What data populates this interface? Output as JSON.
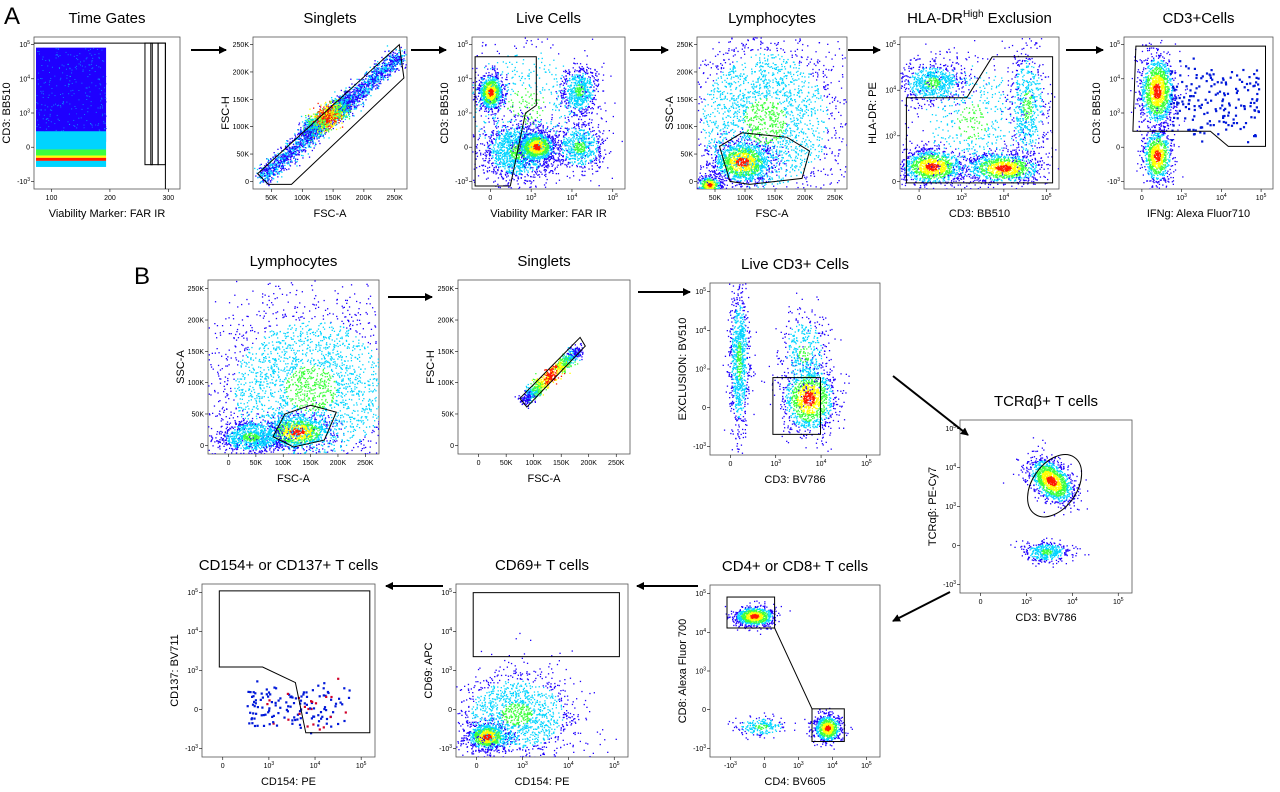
{
  "figure": {
    "panel_labels": [
      "A",
      "B"
    ]
  },
  "colors": {
    "density_low": "#1f00ff",
    "density_mid": "#00d4ff",
    "density_midhigh": "#3cff3c",
    "density_high": "#ffff00",
    "density_peak": "#ff1a00",
    "gate": "#000000",
    "arrow": "#000000",
    "dot": "#0018d9",
    "dot_positive": "#d0002a"
  },
  "chart_data": [
    {
      "id": "A1",
      "type": "scatter",
      "panel": "A",
      "title": "Time Gates",
      "title_sup": "",
      "title_tail": "",
      "xlabel": "Viability Marker: FAR IR",
      "ylabel": "CD3: BB510",
      "xticks": [
        "100",
        "200",
        "300"
      ],
      "yticks": [
        "10^5",
        "10^4",
        "10^3",
        "0",
        "-10^3"
      ],
      "gates": [
        "Time Gates"
      ]
    },
    {
      "id": "A2",
      "type": "scatter",
      "panel": "A",
      "title": "Singlets",
      "title_sup": "",
      "title_tail": "",
      "xlabel": "FSC-A",
      "ylabel": "FSC-H",
      "xticks": [
        "50K",
        "100K",
        "150K",
        "200K",
        "250K"
      ],
      "yticks": [
        "250K",
        "200K",
        "150K",
        "100K",
        "50K",
        "0"
      ],
      "gates": [
        "Singlets"
      ]
    },
    {
      "id": "A3",
      "type": "scatter",
      "panel": "A",
      "title": "Live Cells",
      "title_sup": "",
      "title_tail": "",
      "xlabel": "Viability Marker: FAR IR",
      "ylabel": "CD3: BB510",
      "xticks": [
        "0",
        "10^3",
        "10^4",
        "10^5"
      ],
      "yticks": [
        "10^5",
        "10^4",
        "10^3",
        "0",
        "-10^3"
      ],
      "gates": [
        "Live Cells"
      ]
    },
    {
      "id": "A4",
      "type": "scatter",
      "panel": "A",
      "title": "Lymphocytes",
      "title_sup": "",
      "title_tail": "",
      "xlabel": "FSC-A",
      "ylabel": "SSC-A",
      "xticks": [
        "50K",
        "100K",
        "150K",
        "200K",
        "250K"
      ],
      "yticks": [
        "250K",
        "200K",
        "150K",
        "100K",
        "50K",
        "0"
      ],
      "gates": [
        "Lymphocytes"
      ]
    },
    {
      "id": "A5",
      "type": "scatter",
      "panel": "A",
      "title": "HLA-DR",
      "title_sup": "High",
      "title_tail": " Exclusion",
      "xlabel": "CD3: BB510",
      "ylabel": "HLA-DR: PE",
      "xticks": [
        "0",
        "10^3",
        "10^4",
        "10^5"
      ],
      "yticks": [
        "10^5",
        "10^4",
        "10^3",
        "0"
      ],
      "gates": [
        "HLA-DR High Exclusion"
      ]
    },
    {
      "id": "A6",
      "type": "scatter",
      "panel": "A",
      "title": "CD3+Cells",
      "title_sup": "",
      "title_tail": "",
      "xlabel": "IFNg: Alexa Fluor710",
      "ylabel": "CD3: BB510",
      "xticks": [
        "0",
        "10^3",
        "10^4",
        "10^5"
      ],
      "yticks": [
        "10^5",
        "10^4",
        "10^3",
        "0",
        "-10^3"
      ],
      "gates": [
        "CD3+Cells"
      ]
    },
    {
      "id": "B1",
      "type": "scatter",
      "panel": "B",
      "title": "Lymphocytes",
      "title_sup": "",
      "title_tail": "",
      "xlabel": "FSC-A",
      "ylabel": "SSC-A",
      "xticks": [
        "0",
        "50K",
        "100K",
        "150K",
        "200K",
        "250K"
      ],
      "yticks": [
        "250K",
        "200K",
        "150K",
        "100K",
        "50K",
        "0"
      ],
      "gates": [
        "Lymphocytes"
      ]
    },
    {
      "id": "B2",
      "type": "scatter",
      "panel": "B",
      "title": "Singlets",
      "title_sup": "",
      "title_tail": "",
      "xlabel": "FSC-A",
      "ylabel": "FSC-H",
      "xticks": [
        "0",
        "50K",
        "100K",
        "150K",
        "200K",
        "250K"
      ],
      "yticks": [
        "250K",
        "200K",
        "150K",
        "100K",
        "50K",
        "0"
      ],
      "gates": [
        "Singlets"
      ]
    },
    {
      "id": "B3",
      "type": "scatter",
      "panel": "B",
      "title": "Live CD3+ Cells",
      "title_sup": "",
      "title_tail": "",
      "xlabel": "CD3: BV786",
      "ylabel": "EXCLUSION: BV510",
      "xticks": [
        "0",
        "10^3",
        "10^4",
        "10^5"
      ],
      "yticks": [
        "10^5",
        "10^4",
        "10^3",
        "0",
        "-10^3"
      ],
      "gates": [
        "Live CD3+ Cells"
      ]
    },
    {
      "id": "B4",
      "type": "scatter",
      "panel": "B",
      "title": "TCRαβ+ T cells",
      "title_sup": "",
      "title_tail": "",
      "xlabel": "CD3: BV786",
      "ylabel": "TCRαβ: PE-Cy7",
      "xticks": [
        "0",
        "10^3",
        "10^4",
        "10^5"
      ],
      "yticks": [
        "10^5",
        "10^4",
        "10^3",
        "0",
        "-10^3"
      ],
      "gates": [
        "TCRαβ+ T cells"
      ]
    },
    {
      "id": "B5",
      "type": "scatter",
      "panel": "B",
      "title": "CD4+ or CD8+ T cells",
      "title_sup": "",
      "title_tail": "",
      "xlabel": "CD4: BV605",
      "ylabel": "CD8: Alexa Fluor 700",
      "xticks": [
        "-10^3",
        "0",
        "10^3",
        "10^4",
        "10^5"
      ],
      "yticks": [
        "10^5",
        "10^4",
        "10^3",
        "0",
        "-10^3"
      ],
      "gates": [
        "CD8+",
        "CD4+"
      ]
    },
    {
      "id": "B6",
      "type": "scatter",
      "panel": "B",
      "title": "CD69+ T cells",
      "title_sup": "",
      "title_tail": "",
      "xlabel": "CD154: PE",
      "ylabel": "CD69: APC",
      "xticks": [
        "0",
        "10^3",
        "10^4",
        "10^5"
      ],
      "yticks": [
        "10^5",
        "10^4",
        "10^3",
        "0",
        "-10^3"
      ],
      "gates": [
        "CD69+ T cells"
      ]
    },
    {
      "id": "B7",
      "type": "scatter",
      "panel": "B",
      "title": "CD154+ or CD137+ T cells",
      "title_sup": "",
      "title_tail": "",
      "xlabel": "CD154: PE",
      "ylabel": "CD137: BV711",
      "xticks": [
        "0",
        "10^3",
        "10^4",
        "10^5"
      ],
      "yticks": [
        "10^5",
        "10^4",
        "10^3",
        "0",
        "-10^3"
      ],
      "gates": [
        "CD154+ or CD137+ T cells"
      ]
    }
  ]
}
